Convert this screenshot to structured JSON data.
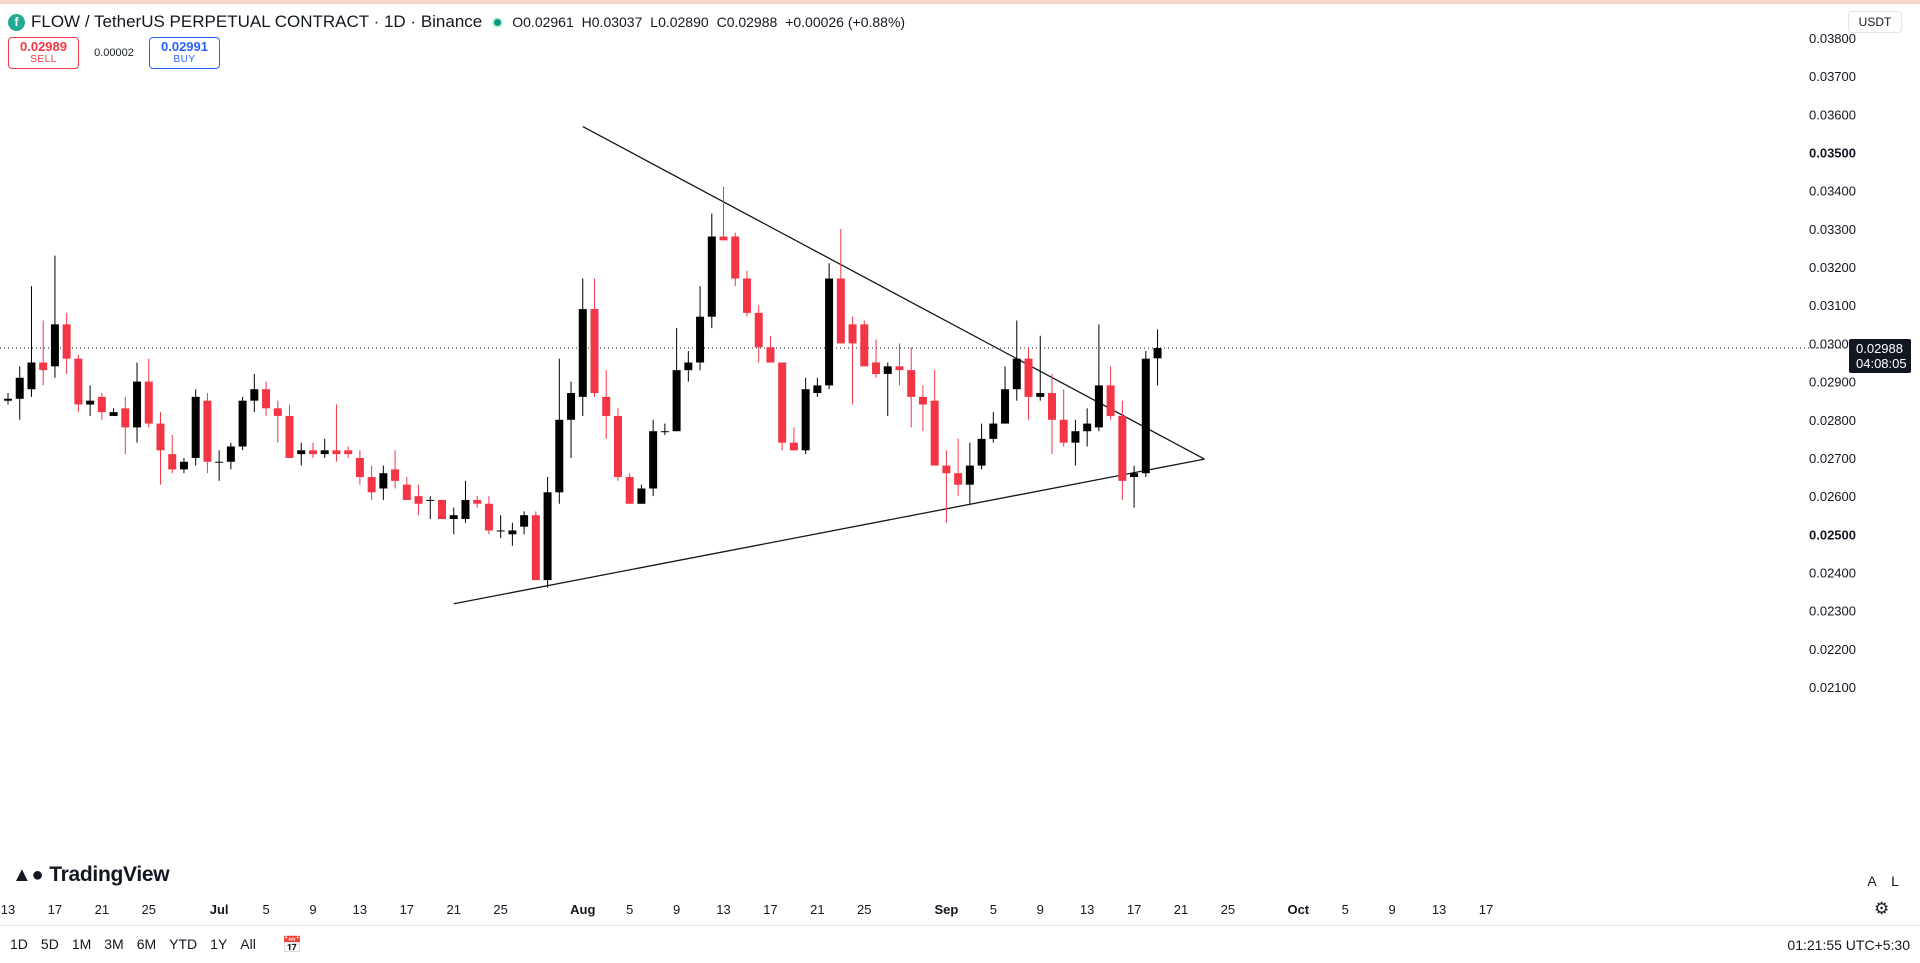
{
  "header": {
    "symbol": "FLOW / TetherUS PERPETUAL CONTRACT · 1D · Binance",
    "ohlc": {
      "o_label": "O",
      "o": "0.02961",
      "h_label": "H",
      "h": "0.03037",
      "l_label": "L",
      "l": "0.02890",
      "c_label": "C",
      "c": "0.02988",
      "change": "+0.00026 (+0.88%)"
    }
  },
  "trade": {
    "sell_price": "0.02989",
    "sell_label": "SELL",
    "spread": "0.00002",
    "buy_price": "0.02991",
    "buy_label": "BUY"
  },
  "currency": "USDT",
  "price_label": {
    "value": "0.02988",
    "countdown": "04:08:05"
  },
  "brand": "TradingView",
  "scale_buttons": [
    "A",
    "L"
  ],
  "range_buttons": [
    "1D",
    "5D",
    "1M",
    "3M",
    "6M",
    "YTD",
    "1Y",
    "All"
  ],
  "clock": "01:21:55 UTC+5:30",
  "icons": {
    "logo": "flow-logo-icon",
    "calendar": "calendar-icon",
    "settings": "gear-icon"
  },
  "colors": {
    "up": "#000000",
    "down": "#f23645",
    "line": "#131722",
    "grid_text": "#131722"
  },
  "chart_data": {
    "type": "candlestick",
    "y_axis": {
      "range": [
        0.0203,
        0.0385
      ],
      "ticks": [
        "0.03800",
        "0.03700",
        "0.03600",
        "0.03500",
        "0.03400",
        "0.03300",
        "0.03200",
        "0.03100",
        "0.03000",
        "0.02900",
        "0.02800",
        "0.02700",
        "0.02600",
        "0.02500",
        "0.02400",
        "0.02300",
        "0.02200",
        "0.02100"
      ],
      "bold_ticks": [
        "0.03500",
        "0.02500"
      ]
    },
    "x_axis": {
      "start": "2024-06-13",
      "ticks": [
        {
          "date": "2024-06-13",
          "label": "13"
        },
        {
          "date": "2024-06-17",
          "label": "17"
        },
        {
          "date": "2024-06-21",
          "label": "21"
        },
        {
          "date": "2024-06-25",
          "label": "25"
        },
        {
          "date": "2024-07-01",
          "label": "Jul",
          "bold": true
        },
        {
          "date": "2024-07-05",
          "label": "5"
        },
        {
          "date": "2024-07-09",
          "label": "9"
        },
        {
          "date": "2024-07-13",
          "label": "13"
        },
        {
          "date": "2024-07-17",
          "label": "17"
        },
        {
          "date": "2024-07-21",
          "label": "21"
        },
        {
          "date": "2024-07-25",
          "label": "25"
        },
        {
          "date": "2024-08-01",
          "label": "Aug",
          "bold": true
        },
        {
          "date": "2024-08-05",
          "label": "5"
        },
        {
          "date": "2024-08-09",
          "label": "9"
        },
        {
          "date": "2024-08-13",
          "label": "13"
        },
        {
          "date": "2024-08-17",
          "label": "17"
        },
        {
          "date": "2024-08-21",
          "label": "21"
        },
        {
          "date": "2024-08-25",
          "label": "25"
        },
        {
          "date": "2024-09-01",
          "label": "Sep",
          "bold": true
        },
        {
          "date": "2024-09-05",
          "label": "5"
        },
        {
          "date": "2024-09-09",
          "label": "9"
        },
        {
          "date": "2024-09-13",
          "label": "13"
        },
        {
          "date": "2024-09-17",
          "label": "17"
        },
        {
          "date": "2024-09-21",
          "label": "21"
        },
        {
          "date": "2024-09-25",
          "label": "25"
        },
        {
          "date": "2024-10-01",
          "label": "Oct",
          "bold": true
        },
        {
          "date": "2024-10-05",
          "label": "5"
        },
        {
          "date": "2024-10-09",
          "label": "9"
        },
        {
          "date": "2024-10-13",
          "label": "13"
        },
        {
          "date": "2024-10-17",
          "label": "17"
        }
      ]
    },
    "candles": [
      {
        "date": "2024-06-13",
        "o": 0.0285,
        "h": 0.0287,
        "l": 0.0284,
        "c": 0.02855
      },
      {
        "date": "2024-06-14",
        "o": 0.02855,
        "h": 0.0294,
        "l": 0.028,
        "c": 0.0291
      },
      {
        "date": "2024-06-15",
        "o": 0.0288,
        "h": 0.0315,
        "l": 0.0286,
        "c": 0.0295
      },
      {
        "date": "2024-06-16",
        "o": 0.0295,
        "h": 0.0306,
        "l": 0.0289,
        "c": 0.0293
      },
      {
        "date": "2024-06-17",
        "o": 0.0294,
        "h": 0.0323,
        "l": 0.0291,
        "c": 0.0305
      },
      {
        "date": "2024-06-18",
        "o": 0.0305,
        "h": 0.0308,
        "l": 0.0292,
        "c": 0.0296
      },
      {
        "date": "2024-06-19",
        "o": 0.0296,
        "h": 0.0297,
        "l": 0.0282,
        "c": 0.0284
      },
      {
        "date": "2024-06-20",
        "o": 0.0284,
        "h": 0.0289,
        "l": 0.0281,
        "c": 0.0285
      },
      {
        "date": "2024-06-21",
        "o": 0.0286,
        "h": 0.0287,
        "l": 0.028,
        "c": 0.0282
      },
      {
        "date": "2024-06-22",
        "o": 0.0281,
        "h": 0.0283,
        "l": 0.0281,
        "c": 0.0282
      },
      {
        "date": "2024-06-23",
        "o": 0.0283,
        "h": 0.0286,
        "l": 0.0271,
        "c": 0.0278
      },
      {
        "date": "2024-06-24",
        "o": 0.0278,
        "h": 0.0295,
        "l": 0.0274,
        "c": 0.029
      },
      {
        "date": "2024-06-25",
        "o": 0.029,
        "h": 0.0296,
        "l": 0.0278,
        "c": 0.0279
      },
      {
        "date": "2024-06-26",
        "o": 0.0279,
        "h": 0.0282,
        "l": 0.0263,
        "c": 0.0272
      },
      {
        "date": "2024-06-27",
        "o": 0.0271,
        "h": 0.0276,
        "l": 0.0266,
        "c": 0.0267
      },
      {
        "date": "2024-06-28",
        "o": 0.0267,
        "h": 0.027,
        "l": 0.0266,
        "c": 0.0269
      },
      {
        "date": "2024-06-29",
        "o": 0.027,
        "h": 0.0288,
        "l": 0.0268,
        "c": 0.0286
      },
      {
        "date": "2024-06-30",
        "o": 0.0285,
        "h": 0.0287,
        "l": 0.0266,
        "c": 0.0269
      },
      {
        "date": "2024-07-01",
        "o": 0.0269,
        "h": 0.0272,
        "l": 0.0264,
        "c": 0.0269
      },
      {
        "date": "2024-07-02",
        "o": 0.0269,
        "h": 0.0274,
        "l": 0.0267,
        "c": 0.0273
      },
      {
        "date": "2024-07-03",
        "o": 0.0273,
        "h": 0.0286,
        "l": 0.0272,
        "c": 0.0285
      },
      {
        "date": "2024-07-04",
        "o": 0.0285,
        "h": 0.0292,
        "l": 0.0282,
        "c": 0.0288
      },
      {
        "date": "2024-07-05",
        "o": 0.0288,
        "h": 0.029,
        "l": 0.0281,
        "c": 0.0283
      },
      {
        "date": "2024-07-06",
        "o": 0.0283,
        "h": 0.0285,
        "l": 0.0274,
        "c": 0.0281
      },
      {
        "date": "2024-07-07",
        "o": 0.0281,
        "h": 0.0284,
        "l": 0.027,
        "c": 0.027
      },
      {
        "date": "2024-07-08",
        "o": 0.0271,
        "h": 0.0274,
        "l": 0.0268,
        "c": 0.0272
      },
      {
        "date": "2024-07-09",
        "o": 0.0272,
        "h": 0.0274,
        "l": 0.027,
        "c": 0.0271
      },
      {
        "date": "2024-07-10",
        "o": 0.0271,
        "h": 0.0275,
        "l": 0.027,
        "c": 0.0272
      },
      {
        "date": "2024-07-11",
        "o": 0.0272,
        "h": 0.0284,
        "l": 0.0269,
        "c": 0.0271
      },
      {
        "date": "2024-07-12",
        "o": 0.0272,
        "h": 0.0273,
        "l": 0.027,
        "c": 0.0271
      },
      {
        "date": "2024-07-13",
        "o": 0.027,
        "h": 0.0272,
        "l": 0.0263,
        "c": 0.0265
      },
      {
        "date": "2024-07-14",
        "o": 0.0265,
        "h": 0.0268,
        "l": 0.0259,
        "c": 0.0261
      },
      {
        "date": "2024-07-15",
        "o": 0.0262,
        "h": 0.0268,
        "l": 0.0259,
        "c": 0.0266
      },
      {
        "date": "2024-07-16",
        "o": 0.0267,
        "h": 0.0272,
        "l": 0.0262,
        "c": 0.0264
      },
      {
        "date": "2024-07-17",
        "o": 0.0263,
        "h": 0.0265,
        "l": 0.0259,
        "c": 0.0259
      },
      {
        "date": "2024-07-18",
        "o": 0.026,
        "h": 0.0263,
        "l": 0.0255,
        "c": 0.0258
      },
      {
        "date": "2024-07-19",
        "o": 0.0259,
        "h": 0.026,
        "l": 0.0254,
        "c": 0.0259
      },
      {
        "date": "2024-07-20",
        "o": 0.0259,
        "h": 0.0259,
        "l": 0.0255,
        "c": 0.0254
      },
      {
        "date": "2024-07-21",
        "o": 0.0254,
        "h": 0.0257,
        "l": 0.025,
        "c": 0.0255
      },
      {
        "date": "2024-07-22",
        "o": 0.0254,
        "h": 0.0264,
        "l": 0.0253,
        "c": 0.0259
      },
      {
        "date": "2024-07-23",
        "o": 0.0259,
        "h": 0.026,
        "l": 0.0257,
        "c": 0.0258
      },
      {
        "date": "2024-07-24",
        "o": 0.0258,
        "h": 0.026,
        "l": 0.025,
        "c": 0.0251
      },
      {
        "date": "2024-07-25",
        "o": 0.0251,
        "h": 0.0255,
        "l": 0.0249,
        "c": 0.0251
      },
      {
        "date": "2024-07-26",
        "o": 0.025,
        "h": 0.0253,
        "l": 0.0247,
        "c": 0.0251
      },
      {
        "date": "2024-07-27",
        "o": 0.0252,
        "h": 0.0256,
        "l": 0.025,
        "c": 0.0255
      },
      {
        "date": "2024-07-28",
        "o": 0.0255,
        "h": 0.0256,
        "l": 0.0238,
        "c": 0.0238
      },
      {
        "date": "2024-07-29",
        "o": 0.0238,
        "h": 0.0265,
        "l": 0.0236,
        "c": 0.0261
      },
      {
        "date": "2024-07-30",
        "o": 0.0261,
        "h": 0.0296,
        "l": 0.0258,
        "c": 0.028
      },
      {
        "date": "2024-07-31",
        "o": 0.028,
        "h": 0.029,
        "l": 0.027,
        "c": 0.0287
      },
      {
        "date": "2024-08-01",
        "o": 0.0286,
        "h": 0.0317,
        "l": 0.0281,
        "c": 0.0309
      },
      {
        "date": "2024-08-02",
        "o": 0.0309,
        "h": 0.0317,
        "l": 0.0286,
        "c": 0.0287
      },
      {
        "date": "2024-08-03",
        "o": 0.0286,
        "h": 0.0293,
        "l": 0.0275,
        "c": 0.0281
      },
      {
        "date": "2024-08-04",
        "o": 0.0281,
        "h": 0.0283,
        "l": 0.0264,
        "c": 0.0265
      },
      {
        "date": "2024-08-05",
        "o": 0.0265,
        "h": 0.0266,
        "l": 0.0258,
        "c": 0.0258
      },
      {
        "date": "2024-08-06",
        "o": 0.0258,
        "h": 0.0263,
        "l": 0.0258,
        "c": 0.0262
      },
      {
        "date": "2024-08-07",
        "o": 0.0262,
        "h": 0.028,
        "l": 0.026,
        "c": 0.0277
      },
      {
        "date": "2024-08-08",
        "o": 0.0277,
        "h": 0.0279,
        "l": 0.0276,
        "c": 0.0277
      },
      {
        "date": "2024-08-09",
        "o": 0.0277,
        "h": 0.0304,
        "l": 0.0277,
        "c": 0.0293
      },
      {
        "date": "2024-08-10",
        "o": 0.0293,
        "h": 0.0298,
        "l": 0.029,
        "c": 0.0295
      },
      {
        "date": "2024-08-11",
        "o": 0.0295,
        "h": 0.0315,
        "l": 0.0293,
        "c": 0.0307
      },
      {
        "date": "2024-08-12",
        "o": 0.0307,
        "h": 0.0334,
        "l": 0.0304,
        "c": 0.0328
      },
      {
        "date": "2024-08-13",
        "o": 0.0328,
        "h": 0.0341,
        "l": 0.0327,
        "c": 0.0327
      },
      {
        "date": "2024-08-14",
        "o": 0.0328,
        "h": 0.0329,
        "l": 0.0315,
        "c": 0.0317
      },
      {
        "date": "2024-08-15",
        "o": 0.0317,
        "h": 0.0319,
        "l": 0.0307,
        "c": 0.0308
      },
      {
        "date": "2024-08-16",
        "o": 0.0308,
        "h": 0.031,
        "l": 0.0295,
        "c": 0.0299
      },
      {
        "date": "2024-08-17",
        "o": 0.0299,
        "h": 0.0302,
        "l": 0.0295,
        "c": 0.0295
      },
      {
        "date": "2024-08-18",
        "o": 0.0295,
        "h": 0.0295,
        "l": 0.0272,
        "c": 0.0274
      },
      {
        "date": "2024-08-19",
        "o": 0.0274,
        "h": 0.0278,
        "l": 0.0272,
        "c": 0.0272
      },
      {
        "date": "2024-08-20",
        "o": 0.0272,
        "h": 0.0291,
        "l": 0.0271,
        "c": 0.0288
      },
      {
        "date": "2024-08-21",
        "o": 0.0287,
        "h": 0.0291,
        "l": 0.0286,
        "c": 0.0289
      },
      {
        "date": "2024-08-22",
        "o": 0.0289,
        "h": 0.0321,
        "l": 0.0288,
        "c": 0.0317
      },
      {
        "date": "2024-08-23",
        "o": 0.0317,
        "h": 0.033,
        "l": 0.03,
        "c": 0.03
      },
      {
        "date": "2024-08-24",
        "o": 0.0305,
        "h": 0.0307,
        "l": 0.0284,
        "c": 0.03
      },
      {
        "date": "2024-08-25",
        "o": 0.0305,
        "h": 0.0306,
        "l": 0.0294,
        "c": 0.0294
      },
      {
        "date": "2024-08-26",
        "o": 0.0295,
        "h": 0.0301,
        "l": 0.0291,
        "c": 0.0292
      },
      {
        "date": "2024-08-27",
        "o": 0.0292,
        "h": 0.0295,
        "l": 0.0281,
        "c": 0.0294
      },
      {
        "date": "2024-08-28",
        "o": 0.0294,
        "h": 0.03,
        "l": 0.0289,
        "c": 0.0293
      },
      {
        "date": "2024-08-29",
        "o": 0.0293,
        "h": 0.0299,
        "l": 0.0278,
        "c": 0.0286
      },
      {
        "date": "2024-08-30",
        "o": 0.0286,
        "h": 0.0289,
        "l": 0.0277,
        "c": 0.0284
      },
      {
        "date": "2024-08-31",
        "o": 0.0285,
        "h": 0.0293,
        "l": 0.0268,
        "c": 0.0268
      },
      {
        "date": "2024-09-01",
        "o": 0.0268,
        "h": 0.0272,
        "l": 0.0253,
        "c": 0.0266
      },
      {
        "date": "2024-09-02",
        "o": 0.0266,
        "h": 0.0275,
        "l": 0.026,
        "c": 0.0263
      },
      {
        "date": "2024-09-03",
        "o": 0.0263,
        "h": 0.0274,
        "l": 0.0258,
        "c": 0.0268
      },
      {
        "date": "2024-09-04",
        "o": 0.0268,
        "h": 0.0279,
        "l": 0.0267,
        "c": 0.0275
      },
      {
        "date": "2024-09-05",
        "o": 0.0275,
        "h": 0.0282,
        "l": 0.0274,
        "c": 0.0279
      },
      {
        "date": "2024-09-06",
        "o": 0.0279,
        "h": 0.0294,
        "l": 0.0279,
        "c": 0.0288
      },
      {
        "date": "2024-09-07",
        "o": 0.0288,
        "h": 0.0306,
        "l": 0.0285,
        "c": 0.0296
      },
      {
        "date": "2024-09-08",
        "o": 0.0296,
        "h": 0.0299,
        "l": 0.028,
        "c": 0.0286
      },
      {
        "date": "2024-09-09",
        "o": 0.0286,
        "h": 0.0302,
        "l": 0.0285,
        "c": 0.0287
      },
      {
        "date": "2024-09-10",
        "o": 0.0287,
        "h": 0.0292,
        "l": 0.0271,
        "c": 0.028
      },
      {
        "date": "2024-09-11",
        "o": 0.028,
        "h": 0.0288,
        "l": 0.0273,
        "c": 0.0274
      },
      {
        "date": "2024-09-12",
        "o": 0.0274,
        "h": 0.028,
        "l": 0.0268,
        "c": 0.0277
      },
      {
        "date": "2024-09-13",
        "o": 0.0277,
        "h": 0.0283,
        "l": 0.0273,
        "c": 0.0279
      },
      {
        "date": "2024-09-14",
        "o": 0.0278,
        "h": 0.0305,
        "l": 0.0277,
        "c": 0.0289
      },
      {
        "date": "2024-09-15",
        "o": 0.0289,
        "h": 0.0294,
        "l": 0.028,
        "c": 0.0281
      },
      {
        "date": "2024-09-16",
        "o": 0.0281,
        "h": 0.0285,
        "l": 0.0259,
        "c": 0.0264
      },
      {
        "date": "2024-09-17",
        "o": 0.0265,
        "h": 0.0268,
        "l": 0.0257,
        "c": 0.0266
      },
      {
        "date": "2024-09-18",
        "o": 0.0266,
        "h": 0.0298,
        "l": 0.0265,
        "c": 0.0296
      },
      {
        "date": "2024-09-19",
        "o": 0.02961,
        "h": 0.03037,
        "l": 0.0289,
        "c": 0.02988
      }
    ],
    "trendlines": [
      {
        "from": {
          "date": "2024-07-21",
          "price": 0.02318
        },
        "to": {
          "date": "2024-09-23",
          "price": 0.02697
        }
      },
      {
        "from": {
          "date": "2024-08-01",
          "price": 0.03568
        },
        "to": {
          "date": "2024-09-23",
          "price": 0.02697
        }
      }
    ],
    "last_price": 0.02988
  }
}
